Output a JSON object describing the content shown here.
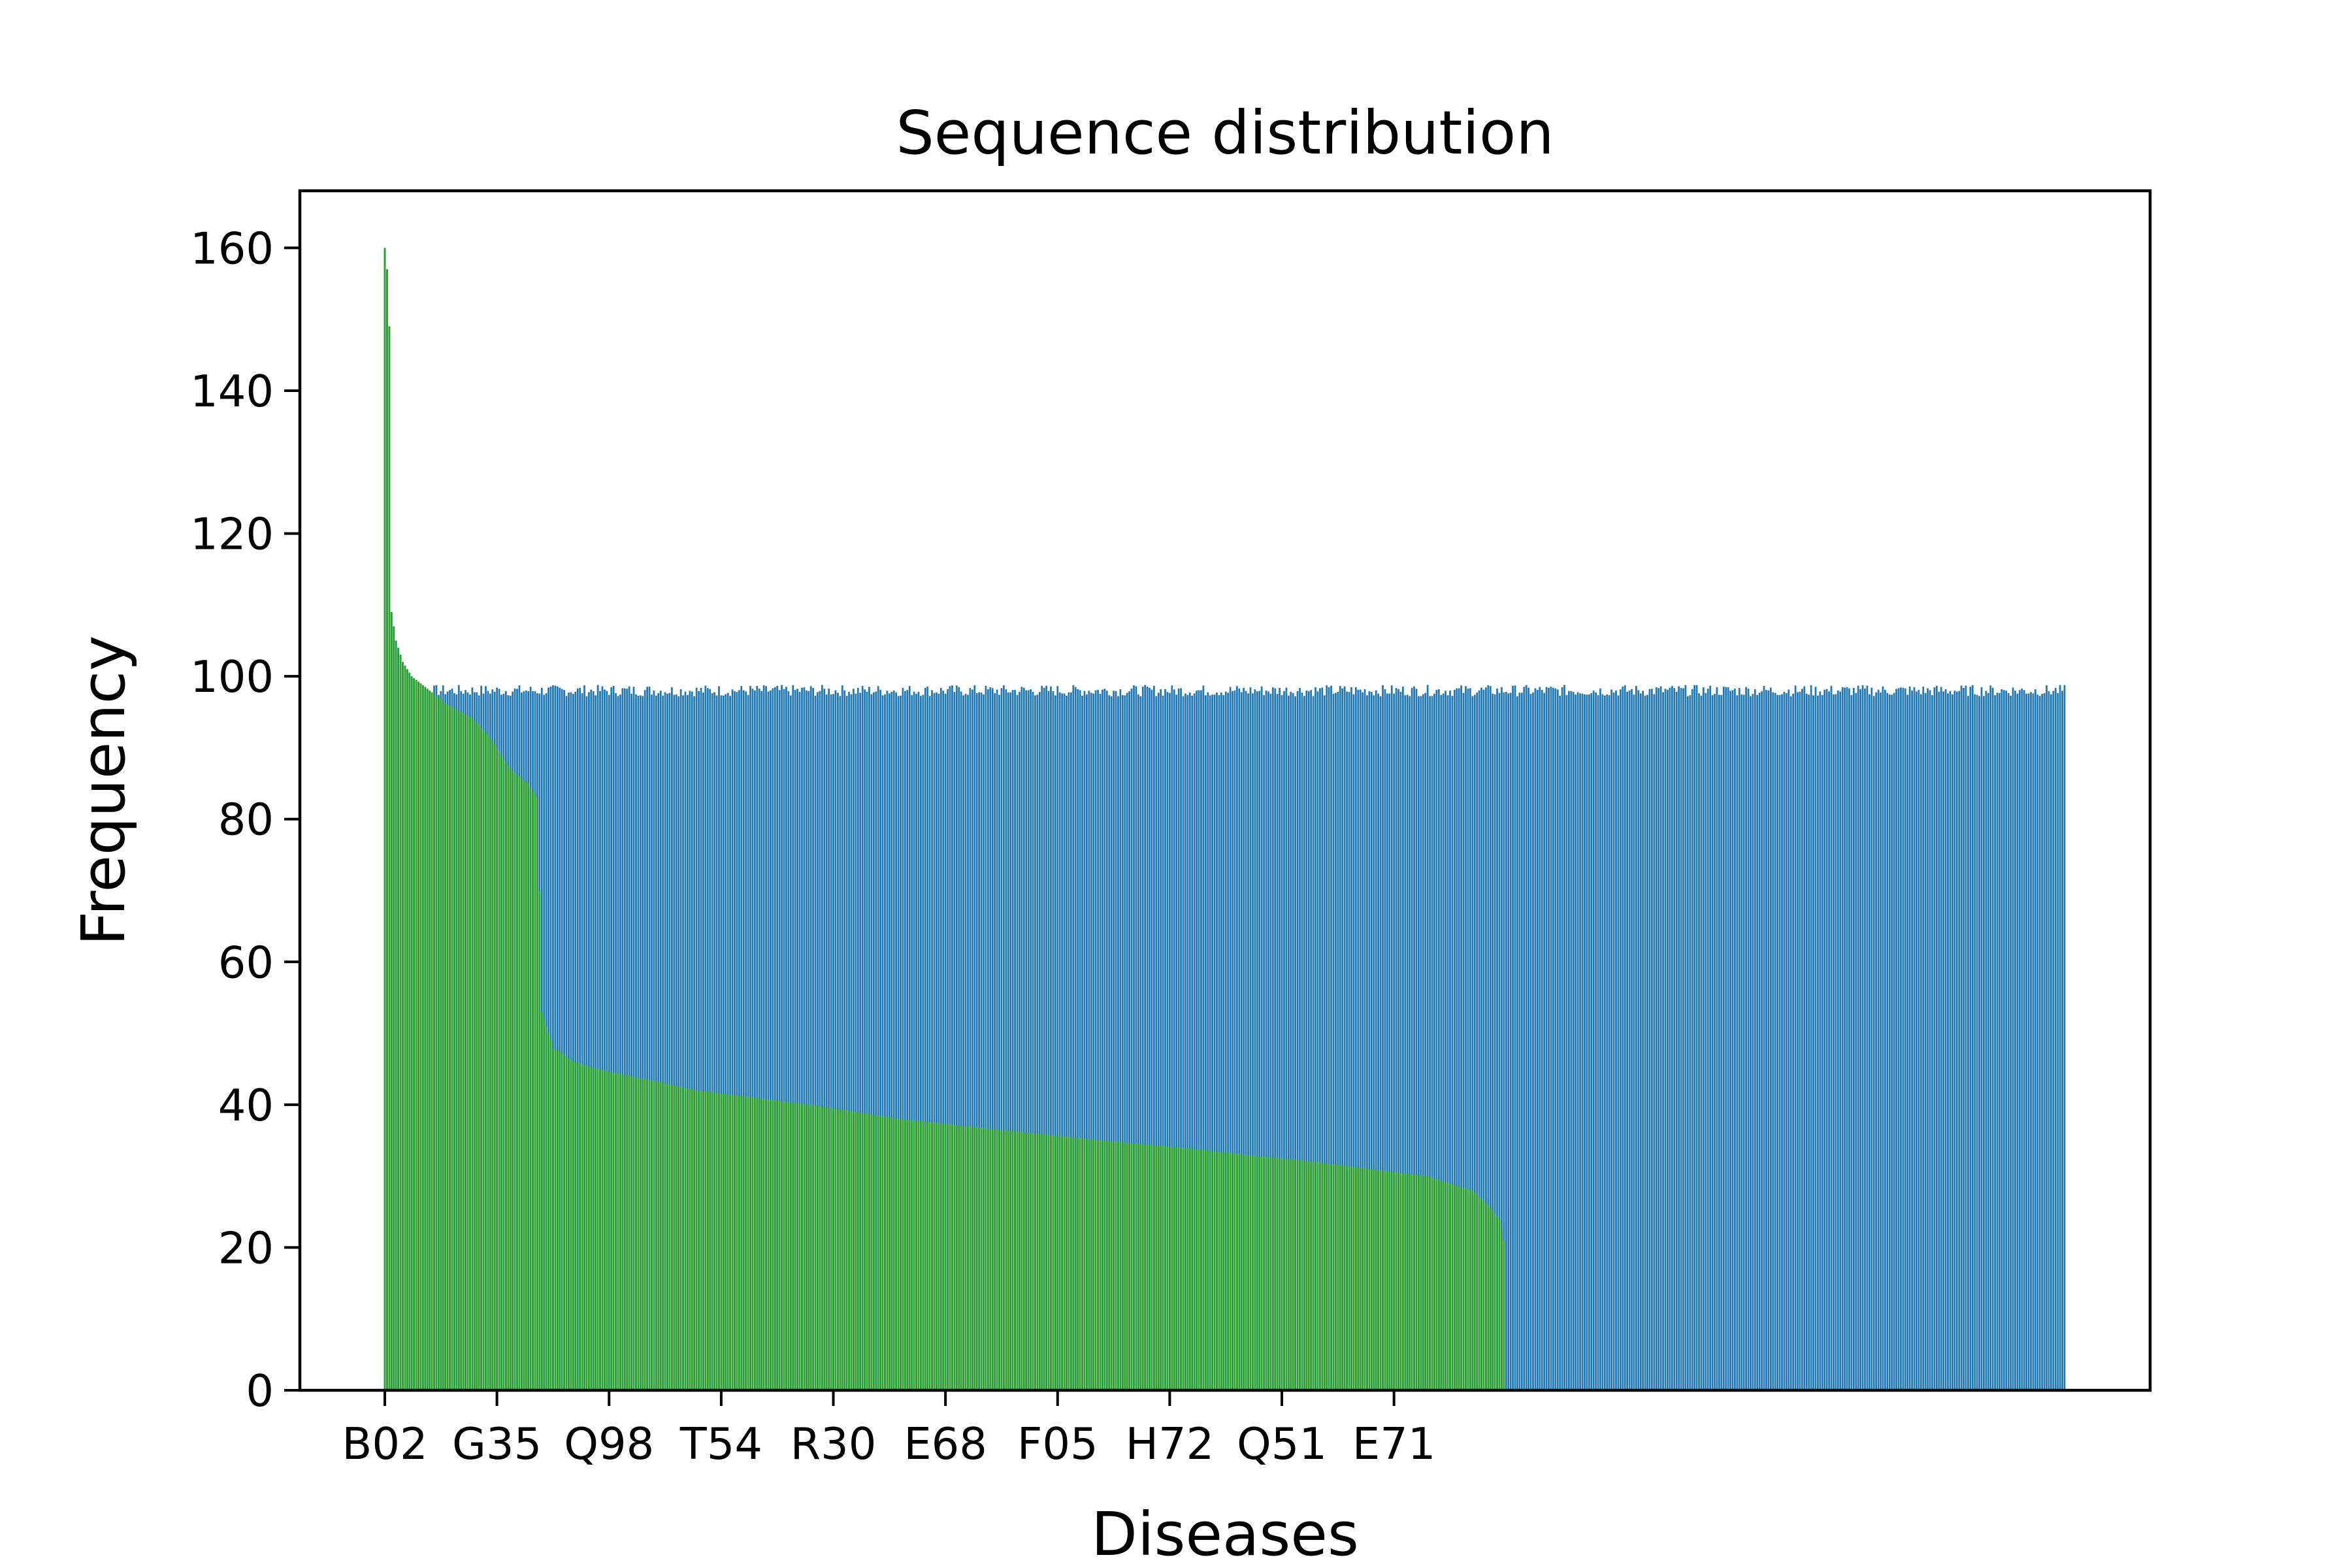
{
  "chart_data": {
    "type": "bar",
    "title": "Sequence distribution",
    "xlabel": "Diseases",
    "ylabel": "Frequency",
    "ylim": [
      0,
      168
    ],
    "yticks": [
      0,
      20,
      40,
      60,
      80,
      100,
      120,
      140,
      160
    ],
    "xtick_labels": [
      "B02",
      "G35",
      "Q98",
      "T54",
      "R30",
      "E68",
      "F05",
      "H72",
      "Q51",
      "E71"
    ],
    "xtick_step": 50,
    "grid": false,
    "legend": "none",
    "colors": {
      "blue_series": "#1f77b4",
      "green_series": "#2ca02c"
    },
    "series": [
      {
        "color": "#1f77b4",
        "count": 750,
        "values_approx": "97–99 across all 750 categories; peaks at the first categories (160, 157, 149, 109, ...) shared with the green series",
        "level": 98
      },
      {
        "color": "#2ca02c",
        "count": 500,
        "profile": [
          [
            0,
            160
          ],
          [
            1,
            157
          ],
          [
            2,
            149
          ],
          [
            3,
            109
          ],
          [
            5,
            105
          ],
          [
            8,
            102
          ],
          [
            12,
            100
          ],
          [
            20,
            98
          ],
          [
            28,
            96
          ],
          [
            40,
            94
          ],
          [
            48,
            91
          ],
          [
            56,
            87
          ],
          [
            64,
            85
          ],
          [
            68,
            83
          ],
          [
            69,
            70
          ],
          [
            70,
            53
          ],
          [
            75,
            48
          ],
          [
            85,
            46
          ],
          [
            95,
            45
          ],
          [
            110,
            44
          ],
          [
            125,
            43
          ],
          [
            140,
            42
          ],
          [
            165,
            41
          ],
          [
            190,
            40
          ],
          [
            210,
            39
          ],
          [
            230,
            38
          ],
          [
            260,
            37
          ],
          [
            290,
            36
          ],
          [
            320,
            35
          ],
          [
            355,
            34
          ],
          [
            385,
            33
          ],
          [
            415,
            32
          ],
          [
            440,
            31
          ],
          [
            465,
            30
          ],
          [
            475,
            29
          ],
          [
            485,
            28
          ],
          [
            492,
            26
          ],
          [
            497,
            24
          ],
          [
            499,
            21
          ]
        ]
      }
    ]
  }
}
